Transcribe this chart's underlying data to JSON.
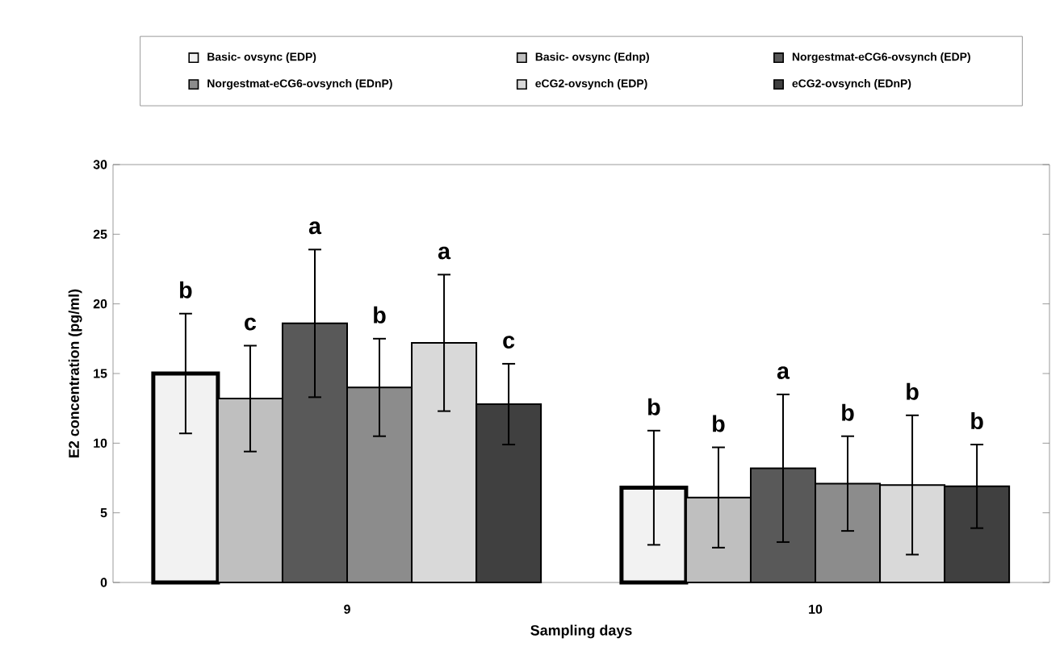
{
  "chart_data": {
    "type": "bar",
    "xlabel": "Sampling days",
    "ylabel": "E2 concentration (pg/ml)",
    "categories": [
      "9",
      "10"
    ],
    "series": [
      {
        "name": "Basic- ovsync (EDP)",
        "color": "#f2f2f2",
        "values": [
          15.0,
          6.8
        ],
        "errors": [
          4.3,
          4.1
        ]
      },
      {
        "name": "Basic- ovsync (Ednp)",
        "color": "#bfbfbf",
        "values": [
          13.2,
          6.1
        ],
        "errors": [
          3.8,
          3.6
        ]
      },
      {
        "name": "Norgestmat-eCG6-ovsynch (EDP)",
        "color": "#595959",
        "values": [
          18.6,
          8.2
        ],
        "errors": [
          5.3,
          5.3
        ]
      },
      {
        "name": "Norgestmat-eCG6-ovsynch (EDnP)",
        "color": "#8c8c8c",
        "values": [
          14.0,
          7.1
        ],
        "errors": [
          3.5,
          3.4
        ]
      },
      {
        "name": "eCG2-ovsynch (EDP)",
        "color": "#d9d9d9",
        "values": [
          17.2,
          7.0
        ],
        "errors": [
          4.9,
          5.0
        ]
      },
      {
        "name": "eCG2-ovsynch (EDnP)",
        "color": "#404040",
        "values": [
          12.8,
          6.9
        ],
        "errors": [
          2.9,
          3.0
        ]
      }
    ],
    "ylim": [
      0,
      30
    ],
    "yticks": [
      0,
      5,
      10,
      15,
      20,
      25,
      30
    ],
    "grid": false,
    "legend": "top",
    "annotations": [
      "b",
      "c",
      "a",
      "b",
      "a",
      "c",
      "b",
      "b",
      "a",
      "b",
      "b",
      "b"
    ]
  }
}
